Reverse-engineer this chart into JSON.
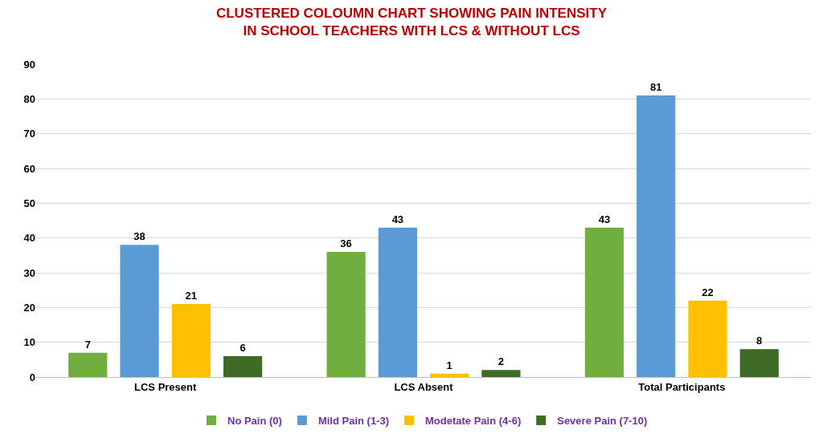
{
  "chart_data": {
    "type": "bar",
    "title": "CLUSTERED COLOUMN CHART SHOWING PAIN INTENSITY IN SCHOOL TEACHERS WITH LCS & WITHOUT LCS",
    "categories": [
      "LCS Present",
      "LCS Absent",
      "Total Participants"
    ],
    "series": [
      {
        "name": "No Pain (0)",
        "color": "#6fae3f",
        "values": [
          7,
          36,
          43
        ]
      },
      {
        "name": "Mild Pain (1-3)",
        "color": "#5b9bd5",
        "values": [
          38,
          43,
          81
        ]
      },
      {
        "name": "Modetate Pain (4-6)",
        "color": "#ffc000",
        "values": [
          21,
          1,
          22
        ]
      },
      {
        "name": "Severe Pain (7-10)",
        "color": "#3e6b26",
        "values": [
          6,
          2,
          8
        ]
      }
    ],
    "ylim": [
      0,
      90
    ],
    "yticks": [
      0,
      10,
      20,
      30,
      40,
      50,
      60,
      70,
      80,
      90
    ],
    "grid": "y",
    "legend": "bottom",
    "data_labels": true
  }
}
